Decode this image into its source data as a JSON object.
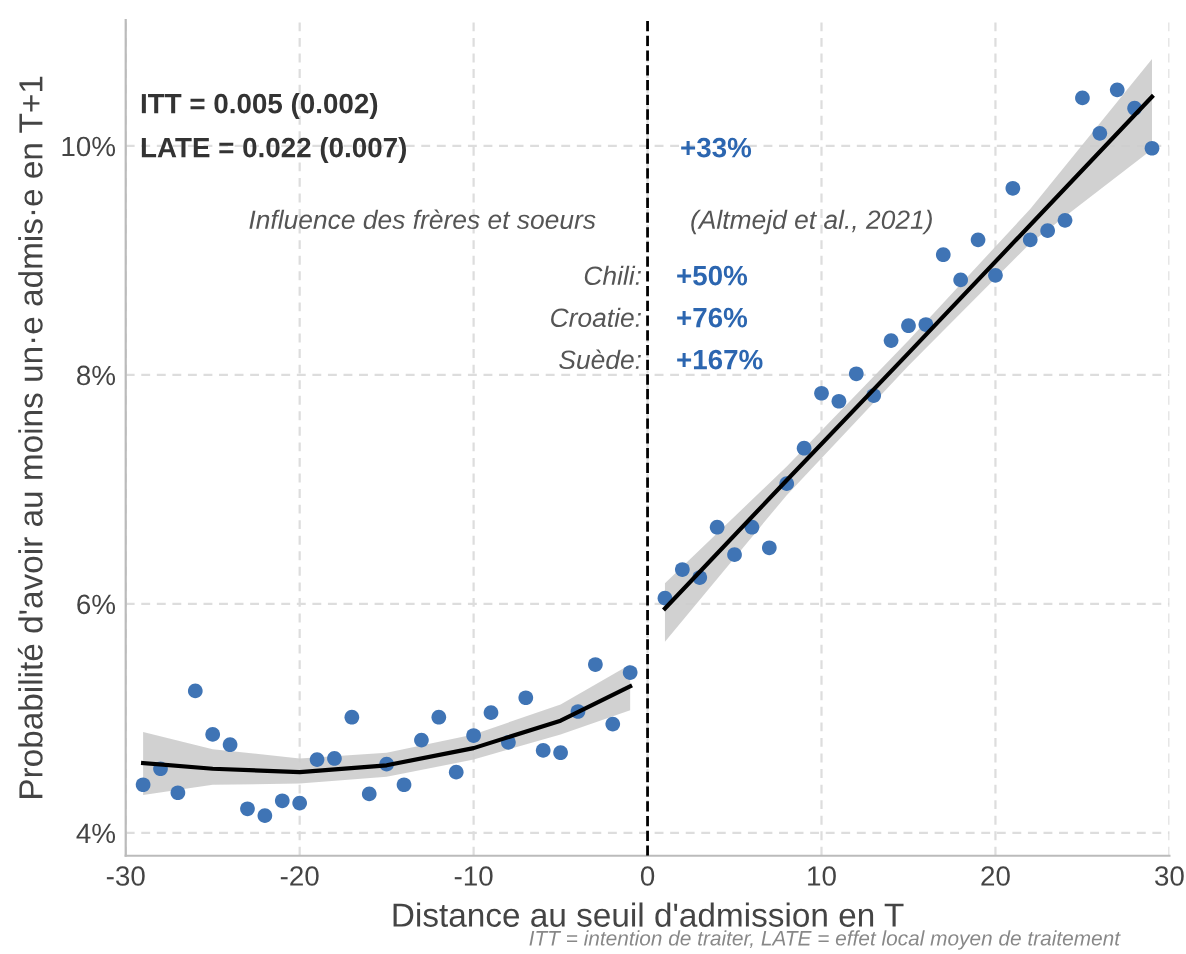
{
  "chart_data": {
    "type": "scatter",
    "xlabel": "Distance au seuil d'admission en T",
    "ylabel": "Probabilité d'avoir au moins un·e admis·e en T+1",
    "annotations": [
      "ITT = 0.005 (0.002)",
      "LATE = 0.022 (0.007)",
      "+33%",
      "Influence des frères et soeurs",
      "(Altmejd et al., 2021)",
      "Chili:",
      "+50%",
      "Croatie:",
      "+76%",
      "Suède:",
      "+167%",
      "ITT = intention de traiter, LATE = effet local moyen de traitement"
    ],
    "series": [
      {
        "color": "#3f74b5",
        "marker": "circle",
        "x": [
          -29,
          -28,
          -27,
          -26,
          -25,
          -24,
          -23,
          -22,
          -21,
          -20,
          -19,
          -18,
          -17,
          -16,
          -15,
          -14,
          -13,
          -12,
          -11,
          -10,
          -9,
          -8,
          -7,
          -6,
          -5,
          -4,
          -3,
          -2,
          -1,
          1,
          2,
          3,
          4,
          5,
          6,
          7,
          8,
          9,
          10,
          11,
          12,
          13,
          14,
          15,
          16,
          17,
          18,
          19,
          20,
          21,
          22,
          23,
          24,
          25,
          26,
          27,
          28,
          29
        ],
        "values": [
          4.42,
          4.56,
          4.35,
          5.24,
          4.86,
          4.77,
          4.21,
          4.15,
          4.28,
          4.26,
          4.64,
          4.65,
          5.01,
          4.34,
          4.6,
          4.42,
          4.81,
          5.01,
          4.53,
          4.85,
          5.05,
          4.79,
          5.18,
          4.72,
          4.7,
          5.06,
          5.47,
          4.95,
          5.4,
          6.05,
          6.3,
          6.23,
          6.67,
          6.43,
          6.67,
          6.49,
          7.05,
          7.36,
          7.84,
          7.77,
          8.01,
          7.82,
          8.3,
          8.43,
          8.44,
          9.05,
          8.83,
          9.18,
          8.87,
          9.63,
          9.18,
          9.26,
          9.35,
          10.42,
          10.11,
          10.49,
          10.33,
          9.98
        ]
      },
      {
        "type": "line",
        "color": "#000000",
        "x": [
          -29,
          -25,
          -20,
          -15,
          -10,
          -5,
          -1
        ],
        "values": [
          4.61,
          4.56,
          4.53,
          4.59,
          4.74,
          4.98,
          5.28
        ],
        "lower": [
          4.33,
          4.42,
          4.43,
          4.49,
          4.64,
          4.86,
          5.07
        ],
        "upper": [
          4.88,
          4.73,
          4.65,
          4.7,
          4.86,
          5.12,
          5.47
        ]
      },
      {
        "type": "line",
        "color": "#000000",
        "x": [
          1,
          8,
          15,
          22,
          29
        ],
        "values": [
          5.96,
          7.08,
          8.19,
          9.31,
          10.43
        ],
        "lower": [
          5.67,
          6.95,
          8.08,
          9.15,
          9.97
        ],
        "upper": [
          6.18,
          7.2,
          8.3,
          9.45,
          10.76
        ]
      }
    ],
    "xlim": [
      -30,
      30
    ],
    "xticks": [
      -30,
      -20,
      -10,
      0,
      10,
      20,
      30
    ],
    "ylim": [
      3.8,
      11.1
    ],
    "yticks": [
      {
        "value": 4,
        "label": "4%"
      },
      {
        "value": 6,
        "label": "6%"
      },
      {
        "value": 8,
        "label": "8%"
      },
      {
        "value": 10,
        "label": "10%"
      }
    ],
    "ref_lines": [
      {
        "axis": "x",
        "value": 0,
        "label": null,
        "color": "#000000",
        "line_style": "dashed"
      }
    ],
    "grid": true,
    "legend": false
  }
}
